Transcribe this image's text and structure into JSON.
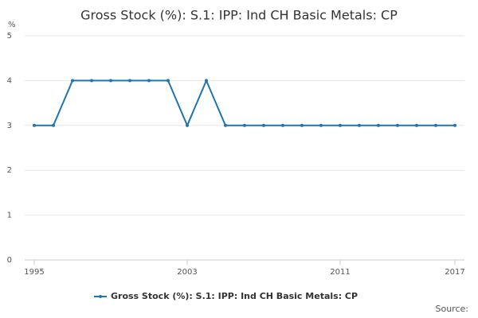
{
  "chart_data": {
    "type": "line",
    "title": "Gross Stock (%): S.1: IPP: Ind CH Basic Metals: CP",
    "y_unit": "%",
    "x": [
      1995,
      1996,
      1997,
      1998,
      1999,
      2000,
      2001,
      2002,
      2003,
      2004,
      2005,
      2006,
      2007,
      2008,
      2009,
      2010,
      2011,
      2012,
      2013,
      2014,
      2015,
      2016,
      2017
    ],
    "series": [
      {
        "name": "Gross Stock (%): S.1: IPP: Ind CH Basic Metals: CP",
        "color": "#1f75b0",
        "values": [
          3,
          3,
          4,
          4,
          4,
          4,
          4,
          4,
          3,
          4,
          3,
          3,
          3,
          3,
          3,
          3,
          3,
          3,
          3,
          3,
          3,
          3,
          3
        ]
      }
    ],
    "xlim": [
      1995,
      2017
    ],
    "xticks": [
      1995,
      2003,
      2011,
      2017
    ],
    "ylim": [
      0,
      5
    ],
    "yticks": [
      0,
      1,
      2,
      3,
      4,
      5
    ],
    "grid": true,
    "source": "Source:"
  }
}
